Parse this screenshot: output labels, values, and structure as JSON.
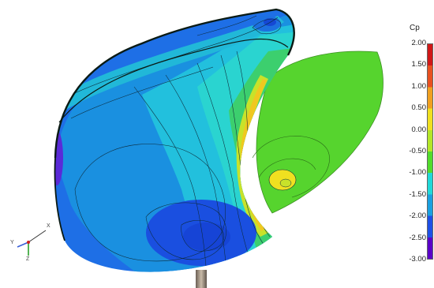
{
  "legend": {
    "title": "Cp",
    "ticks": [
      "2.00",
      "1.50",
      "1.00",
      "0.50",
      "0.00",
      "-0.50",
      "-1.00",
      "-1.50",
      "-2.00",
      "-2.50",
      "-3.00"
    ],
    "range": [
      -3.0,
      2.0
    ],
    "colors": [
      "#5a00c8",
      "#1e4fe6",
      "#1aa0e0",
      "#20d8d8",
      "#52dc2c",
      "#b4e628",
      "#f0e020",
      "#f0a020",
      "#e85020",
      "#d01818"
    ]
  },
  "triad": {
    "x_label": "X",
    "y_label": "Y",
    "z_label": "Z"
  }
}
